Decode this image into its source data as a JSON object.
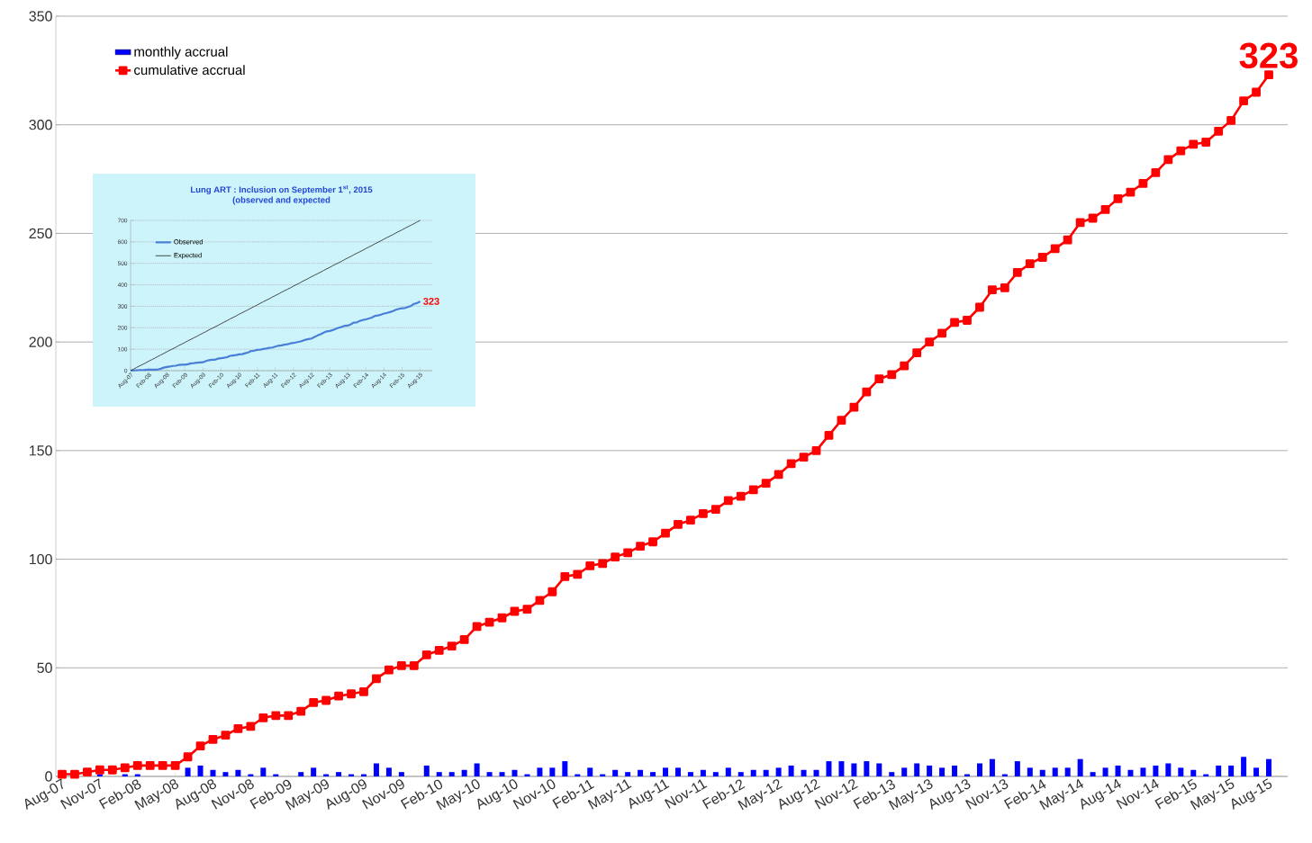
{
  "chart_data": [
    {
      "type": "bar",
      "categories": [
        "Aug-07",
        null,
        null,
        "Nov-07",
        null,
        null,
        "Feb-08",
        null,
        null,
        "May-08",
        null,
        null,
        "Aug-08",
        null,
        null,
        "Nov-08",
        null,
        null,
        "Feb-09",
        null,
        null,
        "May-09",
        null,
        null,
        "Aug-09",
        null,
        null,
        "Nov-09",
        null,
        null,
        "Feb-10",
        null,
        null,
        "May-10",
        null,
        null,
        "Aug-10",
        null,
        null,
        "Nov-10",
        null,
        null,
        "Feb-11",
        null,
        null,
        "May-11",
        null,
        null,
        "Aug-11",
        null,
        null,
        "Nov-11",
        null,
        null,
        "Feb-12",
        null,
        null,
        "May-12",
        null,
        null,
        "Aug-12",
        null,
        null,
        "Nov-12",
        null,
        null,
        "Feb-13",
        null,
        null,
        "May-13",
        null,
        null,
        "Aug-13",
        null,
        null,
        "Nov-13",
        null,
        null,
        "Feb-14",
        null,
        null,
        "May-14",
        null,
        null,
        "Aug-14",
        null,
        null,
        "Nov-14",
        null,
        null,
        "Feb-15",
        null,
        null,
        "May-15",
        null,
        null,
        "Aug-15"
      ],
      "series": [
        {
          "name": "monthly accrual",
          "type": "bar",
          "color": "#0000ff",
          "values": [
            null,
            0,
            null,
            1,
            0,
            1,
            1,
            0,
            0,
            0,
            4,
            5,
            3,
            2,
            3,
            1,
            4,
            1,
            0,
            2,
            4,
            1,
            2,
            1,
            1,
            6,
            4,
            2,
            0,
            5,
            2,
            2,
            3,
            6,
            2,
            2,
            3,
            1,
            4,
            4,
            7,
            1,
            4,
            1,
            3,
            2,
            3,
            2,
            4,
            4,
            2,
            3,
            2,
            4,
            2,
            3,
            3,
            4,
            5,
            3,
            3,
            7,
            7,
            6,
            7,
            6,
            2,
            4,
            6,
            5,
            4,
            5,
            1,
            6,
            8,
            1,
            7,
            4,
            3,
            4,
            4,
            8,
            2,
            4,
            5,
            3,
            4,
            5,
            6,
            4,
            3,
            1,
            5,
            5,
            9,
            4,
            8
          ]
        },
        {
          "name": "cumulative accrual",
          "type": "line",
          "color": "#ff0000",
          "values": [
            1,
            1,
            2,
            3,
            3,
            4,
            5,
            5,
            5,
            5,
            9,
            14,
            17,
            19,
            22,
            23,
            27,
            28,
            28,
            30,
            34,
            35,
            37,
            38,
            39,
            45,
            49,
            51,
            51,
            56,
            58,
            60,
            63,
            69,
            71,
            73,
            76,
            77,
            81,
            85,
            92,
            93,
            97,
            98,
            101,
            103,
            106,
            108,
            112,
            116,
            118,
            121,
            123,
            127,
            129,
            132,
            135,
            139,
            144,
            147,
            150,
            157,
            164,
            170,
            177,
            183,
            185,
            189,
            195,
            200,
            204,
            209,
            210,
            216,
            224,
            225,
            232,
            236,
            239,
            243,
            247,
            255,
            257,
            261,
            266,
            269,
            273,
            278,
            284,
            288,
            291,
            292,
            297,
            302,
            311,
            315,
            323
          ]
        }
      ],
      "ylim": [
        0,
        350
      ],
      "yticks": [
        0,
        50,
        100,
        150,
        200,
        250,
        300,
        350
      ],
      "grid": "y",
      "legend": "top left",
      "marker": "square",
      "annotations": [
        {
          "text": "323",
          "x": "Aug-15",
          "y": 323
        }
      ]
    },
    {
      "type": "line",
      "title": "Lung ART : Inclusion on September 1$^{st}$, 2015",
      "subtitle": "(observed and expected",
      "categories": [
        "Aug-07",
        null,
        null,
        null,
        null,
        null,
        "Feb-08",
        null,
        null,
        null,
        null,
        null,
        "Aug-08",
        null,
        null,
        null,
        null,
        null,
        "Feb-09",
        null,
        null,
        null,
        null,
        null,
        "Aug-09",
        null,
        null,
        null,
        null,
        null,
        "Feb-10",
        null,
        null,
        null,
        null,
        null,
        "Aug-10",
        null,
        null,
        null,
        null,
        null,
        "Feb-11",
        null,
        null,
        null,
        null,
        null,
        "Aug-11",
        null,
        null,
        null,
        null,
        null,
        "Feb-12",
        null,
        null,
        null,
        null,
        null,
        "Aug-12",
        null,
        null,
        null,
        null,
        null,
        "Feb-13",
        null,
        null,
        null,
        null,
        null,
        "Aug-13",
        null,
        null,
        null,
        null,
        null,
        "Feb-14",
        null,
        null,
        null,
        null,
        null,
        "Aug-14",
        null,
        null,
        null,
        null,
        null,
        "Feb-15",
        null,
        null,
        null,
        null,
        null,
        "Aug-15"
      ],
      "series": [
        {
          "name": "Observed",
          "color": "#4a7fd8",
          "values": [
            1,
            1,
            2,
            3,
            3,
            4,
            5,
            5,
            5,
            5,
            9,
            14,
            17,
            19,
            22,
            23,
            27,
            28,
            28,
            30,
            34,
            35,
            37,
            38,
            39,
            45,
            49,
            51,
            51,
            56,
            58,
            60,
            63,
            69,
            71,
            73,
            76,
            77,
            81,
            85,
            92,
            93,
            97,
            98,
            101,
            103,
            106,
            108,
            112,
            116,
            118,
            121,
            123,
            127,
            129,
            132,
            135,
            139,
            144,
            147,
            150,
            157,
            164,
            170,
            177,
            183,
            185,
            189,
            195,
            200,
            204,
            209,
            210,
            216,
            224,
            225,
            232,
            236,
            239,
            243,
            247,
            255,
            257,
            261,
            266,
            269,
            273,
            278,
            284,
            288,
            291,
            292,
            297,
            302,
            311,
            315,
            323
          ]
        },
        {
          "name": "Expected",
          "color": "#333333",
          "values": [
            0,
            7,
            15,
            22,
            29,
            36,
            44,
            51,
            58,
            66,
            73,
            80,
            88,
            95,
            102,
            109,
            117,
            124,
            131,
            139,
            146,
            153,
            160,
            168,
            175,
            182,
            190,
            197,
            204,
            211,
            219,
            226,
            233,
            241,
            248,
            255,
            263,
            270,
            277,
            284,
            292,
            299,
            306,
            314,
            321,
            328,
            335,
            343,
            350,
            357,
            365,
            372,
            379,
            386,
            394,
            401,
            408,
            416,
            423,
            430,
            438,
            445,
            452,
            459,
            467,
            474,
            481,
            489,
            496,
            503,
            510,
            518,
            525,
            532,
            540,
            547,
            554,
            561,
            569,
            576,
            583,
            591,
            598,
            605,
            613,
            620,
            627,
            634,
            642,
            649,
            656,
            664,
            671,
            678,
            685,
            693,
            700
          ]
        }
      ],
      "ylim": [
        0,
        700
      ],
      "yticks": [
        0,
        100,
        200,
        300,
        400,
        500,
        600,
        700
      ],
      "grid": "y",
      "legend": "top left",
      "annotations": [
        {
          "text": "323",
          "x": "Aug-15",
          "y": 323
        }
      ]
    }
  ]
}
